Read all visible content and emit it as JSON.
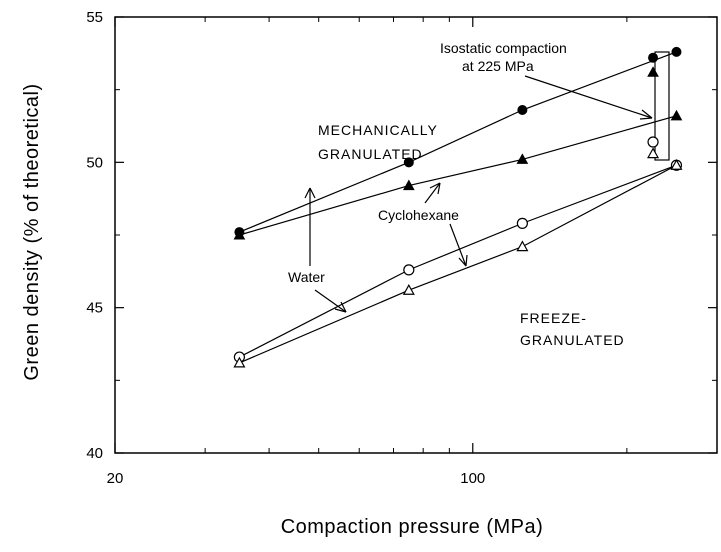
{
  "chart_data": {
    "type": "scatter",
    "title": "",
    "xlabel": "Compaction pressure (MPa)",
    "ylabel": "Green density (% of theoretical)",
    "x_scale": "log",
    "xlim": [
      20,
      300
    ],
    "ylim": [
      40,
      55
    ],
    "x_ticks": [
      {
        "value": 20,
        "label": "20"
      },
      {
        "value": 100,
        "label": "100"
      }
    ],
    "y_ticks": [
      {
        "value": 40,
        "label": "40"
      },
      {
        "value": 45,
        "label": "45"
      },
      {
        "value": 50,
        "label": "50"
      },
      {
        "value": 55,
        "label": "55"
      }
    ],
    "grid": false,
    "series": [
      {
        "marker": "filled-circle",
        "connected": true,
        "x": [
          35,
          75,
          125,
          250
        ],
        "y": [
          47.6,
          50.0,
          51.8,
          53.8
        ]
      },
      {
        "marker": "filled-triangle",
        "connected": true,
        "x": [
          35,
          75,
          125,
          250
        ],
        "y": [
          47.5,
          49.2,
          50.1,
          51.6
        ]
      },
      {
        "marker": "open-circle",
        "connected": true,
        "x": [
          35,
          75,
          125,
          250
        ],
        "y": [
          43.3,
          46.3,
          47.9,
          49.9
        ]
      },
      {
        "marker": "open-triangle",
        "connected": true,
        "x": [
          35,
          75,
          125,
          250
        ],
        "y": [
          43.1,
          45.6,
          47.1,
          49.9
        ]
      },
      {
        "name": "Isostatic compaction at 225 MPa",
        "marker": "mixed",
        "connected": false,
        "points": [
          {
            "x": 225,
            "y": 53.6,
            "marker": "filled-circle"
          },
          {
            "x": 225,
            "y": 53.1,
            "marker": "filled-triangle"
          },
          {
            "x": 225,
            "y": 50.7,
            "marker": "open-circle"
          },
          {
            "x": 225,
            "y": 50.3,
            "marker": "open-triangle"
          }
        ]
      }
    ],
    "annotations": {
      "isostatic_line1": "Isostatic compaction",
      "isostatic_line2": "at 225 MPa",
      "mech_line1": "MECHANICALLY",
      "mech_line2": "GRANULATED",
      "freeze_line1": "FREEZE-",
      "freeze_line2": "GRANULATED",
      "water": "Water",
      "cyclohexane": "Cyclohexane"
    }
  }
}
